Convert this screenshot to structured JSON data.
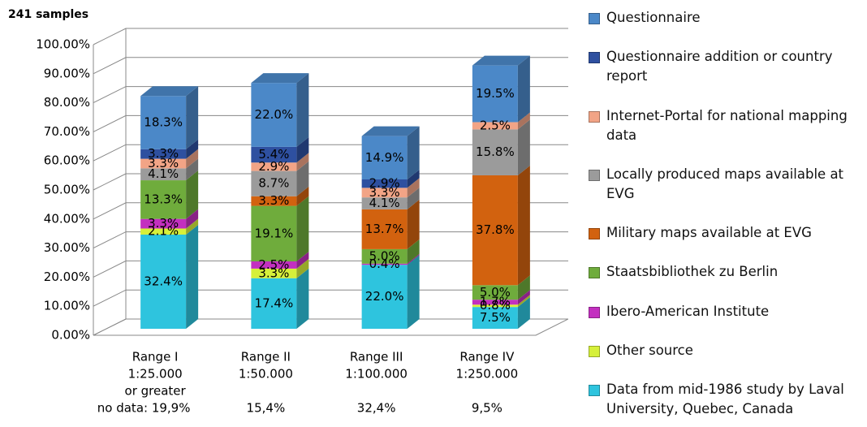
{
  "chart_data": {
    "type": "bar3d-stacked",
    "title": "241 samples",
    "categories": [
      [
        "Range I",
        "1:25.000",
        "or greater"
      ],
      [
        "Range II",
        "1:50.000"
      ],
      [
        "Range III",
        "1:100.000"
      ],
      [
        "Range IV",
        "1:250.000"
      ]
    ],
    "no_data_labels": [
      "no data: 19,9%",
      "15,4%",
      "32,4%",
      "9,5%"
    ],
    "ylim": [
      0,
      100
    ],
    "yticks": [
      {
        "value": 0,
        "label": "0.00%"
      },
      {
        "value": 10,
        "label": "10.00%"
      },
      {
        "value": 20,
        "label": "20.00%"
      },
      {
        "value": 30,
        "label": "30.00%"
      },
      {
        "value": 40,
        "label": "40.00%"
      },
      {
        "value": 50,
        "label": "50.00%"
      },
      {
        "value": 60,
        "label": "60.00%"
      },
      {
        "value": 70,
        "label": "70.00%"
      },
      {
        "value": 80,
        "label": "80.00%"
      },
      {
        "value": 90,
        "label": "90.00%"
      },
      {
        "value": 100,
        "label": "100.00%"
      }
    ],
    "grid": true,
    "series": [
      {
        "name": "Data from mid-1986 study by Laval University, Quebec, Canada",
        "color": "#2ec4de",
        "values": [
          32.4,
          17.4,
          22.0,
          7.5
        ],
        "value_labels": [
          "32.4%",
          "17.4%",
          "22.0%",
          "7.5%"
        ]
      },
      {
        "name": "Other source",
        "color": "#d6f03a",
        "values": [
          2.1,
          3.3,
          0,
          0.8
        ],
        "value_labels": [
          "2.1%",
          "3.3%",
          null,
          "0.8%"
        ]
      },
      {
        "name": "Ibero-American Institute",
        "color": "#c32fc0",
        "values": [
          3.3,
          2.5,
          0.4,
          1.7
        ],
        "value_labels": [
          "3.3%",
          "2.5%",
          "0.4%",
          "1.7%"
        ]
      },
      {
        "name": "Staatsbibliothek zu Berlin",
        "color": "#6fac3c",
        "values": [
          13.3,
          19.1,
          5.0,
          5.0
        ],
        "value_labels": [
          "13.3%",
          "19.1%",
          "5.0%",
          "5.0%"
        ]
      },
      {
        "name": "Military maps available at EVG",
        "color": "#d2620f",
        "values": [
          0,
          3.3,
          13.7,
          37.8
        ],
        "value_labels": [
          null,
          "3.3%",
          "13.7%",
          "37.8%"
        ]
      },
      {
        "name": "Locally produced maps available at EVG",
        "color": "#9b9b9b",
        "values": [
          4.1,
          8.7,
          4.1,
          15.8
        ],
        "value_labels": [
          "4.1%",
          "8.7%",
          "4.1%",
          "15.8%"
        ]
      },
      {
        "name": "Internet-Portal for national mapping data",
        "color": "#f2a486",
        "values": [
          3.3,
          2.9,
          3.3,
          2.5
        ],
        "value_labels": [
          "3.3%",
          "2.9%",
          "3.3%",
          "2.5%"
        ]
      },
      {
        "name": "Questionnaire addition or country report",
        "color": "#2e50a0",
        "values": [
          3.3,
          5.4,
          2.9,
          0
        ],
        "value_labels": [
          "3.3%",
          "5.4%",
          "2.9%",
          null
        ]
      },
      {
        "name": "Questionnaire",
        "color": "#4b88c8",
        "values": [
          18.3,
          22.0,
          14.9,
          19.5
        ],
        "value_labels": [
          "18.3%",
          "22.0%",
          "14.9%",
          "19.5%"
        ]
      }
    ]
  }
}
